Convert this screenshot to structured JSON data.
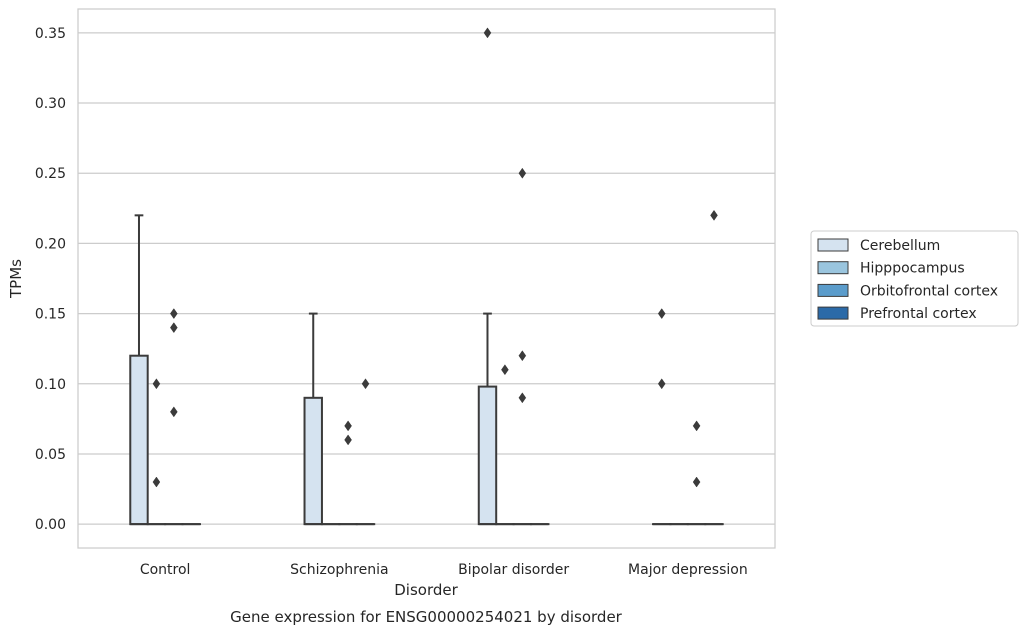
{
  "chart_data": {
    "type": "box",
    "caption": "Gene expression for ENSG00000254021 by disorder",
    "xlabel": "Disorder",
    "ylabel": "TPMs",
    "ylim": [
      -0.017,
      0.367
    ],
    "yticks": [
      0.0,
      0.05,
      0.1,
      0.15,
      0.2,
      0.25,
      0.3,
      0.35
    ],
    "ytick_labels": [
      "0.00",
      "0.05",
      "0.10",
      "0.15",
      "0.20",
      "0.25",
      "0.30",
      "0.35"
    ],
    "grid": "horizontal",
    "legend_position": "right",
    "categories": [
      "Control",
      "Schizophrenia",
      "Bipolar disorder",
      "Major depression"
    ],
    "series": [
      {
        "name": "Cerebellum",
        "color": "#d5e3f0",
        "boxes": [
          {
            "q1": 0.0,
            "median": 0.0,
            "q3": 0.12,
            "whisker_low": 0.0,
            "whisker_high": 0.22,
            "outliers": []
          },
          {
            "q1": 0.0,
            "median": 0.0,
            "q3": 0.09,
            "whisker_low": 0.0,
            "whisker_high": 0.15,
            "outliers": []
          },
          {
            "q1": 0.0,
            "median": 0.0,
            "q3": 0.098,
            "whisker_low": 0.0,
            "whisker_high": 0.15,
            "outliers": [
              0.35
            ]
          },
          {
            "q1": 0.0,
            "median": 0.0,
            "q3": 0.0,
            "whisker_low": 0.0,
            "whisker_high": 0.0,
            "outliers": [
              0.15,
              0.1
            ]
          }
        ]
      },
      {
        "name": "Hipppocampus",
        "color": "#9ac5de",
        "boxes": [
          {
            "q1": 0.0,
            "median": 0.0,
            "q3": 0.0,
            "whisker_low": 0.0,
            "whisker_high": 0.0,
            "outliers": [
              0.1,
              0.03
            ]
          },
          {
            "q1": 0.0,
            "median": 0.0,
            "q3": 0.0,
            "whisker_low": 0.0,
            "whisker_high": 0.0,
            "outliers": []
          },
          {
            "q1": 0.0,
            "median": 0.0,
            "q3": 0.0,
            "whisker_low": 0.0,
            "whisker_high": 0.0,
            "outliers": [
              0.11
            ]
          },
          {
            "q1": 0.0,
            "median": 0.0,
            "q3": 0.0,
            "whisker_low": 0.0,
            "whisker_high": 0.0,
            "outliers": []
          }
        ]
      },
      {
        "name": "Orbitofrontal cortex",
        "color": "#5b9ccb",
        "boxes": [
          {
            "q1": 0.0,
            "median": 0.0,
            "q3": 0.0,
            "whisker_low": 0.0,
            "whisker_high": 0.0,
            "outliers": [
              0.15,
              0.14,
              0.08
            ]
          },
          {
            "q1": 0.0,
            "median": 0.0,
            "q3": 0.0,
            "whisker_low": 0.0,
            "whisker_high": 0.0,
            "outliers": [
              0.07,
              0.06
            ]
          },
          {
            "q1": 0.0,
            "median": 0.0,
            "q3": 0.0,
            "whisker_low": 0.0,
            "whisker_high": 0.0,
            "outliers": [
              0.25,
              0.12,
              0.09
            ]
          },
          {
            "q1": 0.0,
            "median": 0.0,
            "q3": 0.0,
            "whisker_low": 0.0,
            "whisker_high": 0.0,
            "outliers": [
              0.07,
              0.03
            ]
          }
        ]
      },
      {
        "name": "Prefrontal cortex",
        "color": "#2b6aa8",
        "boxes": [
          {
            "q1": 0.0,
            "median": 0.0,
            "q3": 0.0,
            "whisker_low": 0.0,
            "whisker_high": 0.0,
            "outliers": []
          },
          {
            "q1": 0.0,
            "median": 0.0,
            "q3": 0.0,
            "whisker_low": 0.0,
            "whisker_high": 0.0,
            "outliers": [
              0.1
            ]
          },
          {
            "q1": 0.0,
            "median": 0.0,
            "q3": 0.0,
            "whisker_low": 0.0,
            "whisker_high": 0.0,
            "outliers": []
          },
          {
            "q1": 0.0,
            "median": 0.0,
            "q3": 0.0,
            "whisker_low": 0.0,
            "whisker_high": 0.0,
            "outliers": [
              0.22
            ]
          }
        ]
      }
    ]
  }
}
